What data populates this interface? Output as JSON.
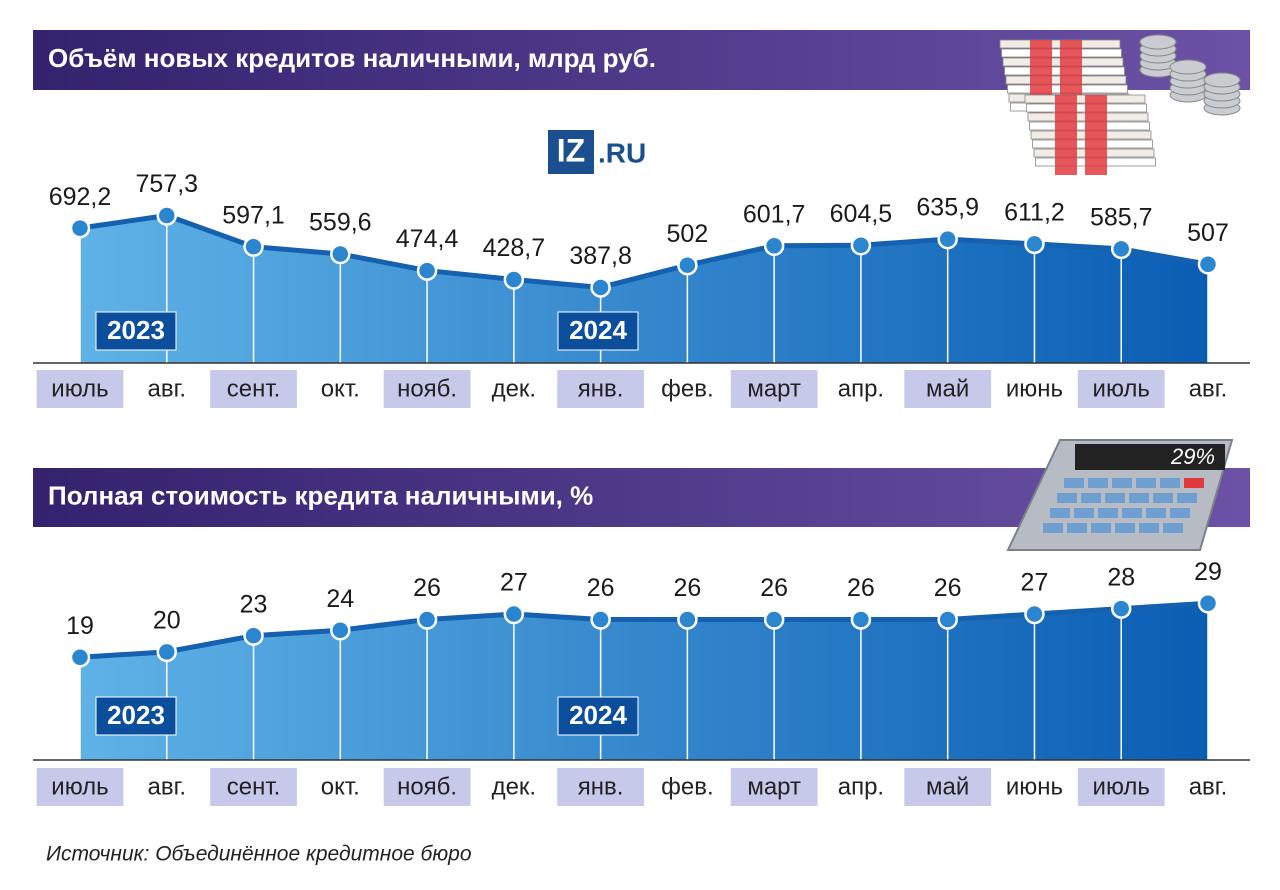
{
  "logo": [
    "IZ",
    ".RU"
  ],
  "source": "Источник: Объединённое кредитное бюро",
  "chart_data": [
    {
      "type": "area",
      "title": "Объём новых кредитов наличными, млрд руб.",
      "categories": [
        "июль",
        "авг.",
        "сент.",
        "окт.",
        "нояб.",
        "дек.",
        "янв.",
        "фев.",
        "март",
        "апр.",
        "май",
        "июнь",
        "июль",
        "авг."
      ],
      "values": [
        692.2,
        757.3,
        597.1,
        559.6,
        474.4,
        428.7,
        387.8,
        502,
        601.7,
        604.5,
        635.9,
        611.2,
        585.7,
        507
      ],
      "value_labels": [
        "692,2",
        "757,3",
        "597,1",
        "559,6",
        "474,4",
        "428,7",
        "387,8",
        "502",
        "601,7",
        "604,5",
        "635,9",
        "611,2",
        "585,7",
        "507"
      ],
      "annotations": [
        "2023",
        "2024"
      ],
      "ylim": [
        0,
        1350
      ],
      "color": "#1561b0"
    },
    {
      "type": "area",
      "title": "Полная стоимость кредита наличными, %",
      "categories": [
        "июль",
        "авг.",
        "сент.",
        "окт.",
        "нояб.",
        "дек.",
        "янв.",
        "фев.",
        "март",
        "апр.",
        "май",
        "июнь",
        "июль",
        "авг."
      ],
      "values": [
        19,
        20,
        23,
        24,
        26,
        27,
        26,
        26,
        26,
        26,
        26,
        27,
        28,
        29
      ],
      "annotations": [
        "2023",
        "2024"
      ],
      "image_text": "29%",
      "ylim": [
        0,
        37
      ],
      "color": "#1561b0"
    }
  ]
}
